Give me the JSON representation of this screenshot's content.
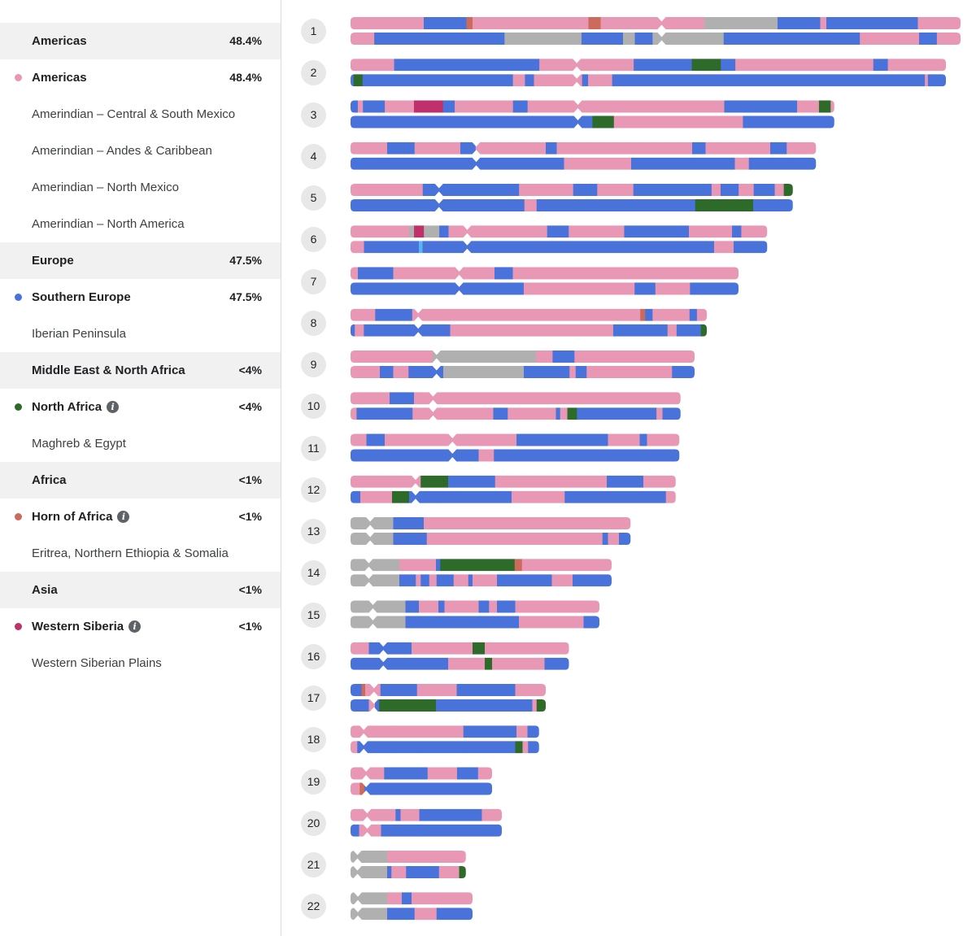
{
  "colors": {
    "americas": "#e898b4",
    "southern_europe": "#4a72db",
    "north_africa": "#2e6b2a",
    "horn_of_africa": "#cc6a5c",
    "western_siberia": "#c0306a",
    "unassigned": "#b0b0b0",
    "light_blue": "#5ab4f0"
  },
  "sidebar": {
    "rows": [
      {
        "label": "Americas",
        "pct": "48.4%"
      },
      {
        "label": "Americas",
        "pct": "48.4%",
        "icon": "pink-dot"
      },
      {
        "label": "Amerindian – Central & South Mexico"
      },
      {
        "label": "Amerindian – Andes & Caribbean"
      },
      {
        "label": "Amerindian – North Mexico"
      },
      {
        "label": "Amerindian – North America"
      },
      {
        "label": "Europe",
        "pct": "47.5%"
      },
      {
        "label": "Southern Europe",
        "pct": "47.5%",
        "icon": "blue-dot"
      },
      {
        "label": "Iberian Peninsula"
      },
      {
        "label": "Middle East & North Africa",
        "pct": "<4%"
      },
      {
        "label": "North Africa",
        "pct": "<4%",
        "icon": "green-dot",
        "info_icon": "i"
      },
      {
        "label": "Maghreb & Egypt"
      },
      {
        "label": "Africa",
        "pct": "<1%"
      },
      {
        "label": "Horn of Africa",
        "pct": "<1%",
        "icon": "orange-dot",
        "info_icon": "i"
      },
      {
        "label": "Eritrea, Northern Ethiopia & Somalia"
      },
      {
        "label": "Asia",
        "pct": "<1%"
      },
      {
        "label": "Western Siberia",
        "pct": "<1%",
        "icon": "magenta-dot",
        "info_icon": "i"
      },
      {
        "label": "Western Siberian Plains"
      }
    ]
  },
  "chromosomes": [
    {
      "num": "1",
      "length": 1,
      "centromere": 0.51,
      "top": [
        [
          "p",
          0.12
        ],
        [
          "b",
          0.07
        ],
        [
          "h",
          0.01
        ],
        [
          "p",
          0.19
        ],
        [
          "h",
          0.02
        ],
        [
          "p",
          0.17
        ],
        [
          "g",
          0.12
        ],
        [
          "b",
          0.07
        ],
        [
          "p",
          0.01
        ],
        [
          "b",
          0.15
        ],
        [
          "p",
          0.07
        ]
      ],
      "bottom": [
        [
          "p",
          0.04
        ],
        [
          "b",
          0.22
        ],
        [
          "g",
          0.13
        ],
        [
          "b",
          0.07
        ],
        [
          "g",
          0.02
        ],
        [
          "b",
          0.03
        ],
        [
          "g",
          0.12
        ],
        [
          "b",
          0.23
        ],
        [
          "p",
          0.1
        ],
        [
          "b",
          0.03
        ],
        [
          "p",
          0.04
        ]
      ]
    },
    {
      "num": "2",
      "length": 0.976,
      "centromere": 0.38,
      "top": [
        [
          "p",
          0.06
        ],
        [
          "b",
          0.2
        ],
        [
          "p",
          0.13
        ],
        [
          "b",
          0.08
        ],
        [
          "g2",
          0.04
        ],
        [
          "b",
          0.02
        ],
        [
          "p",
          0.19
        ],
        [
          "b",
          0.02
        ],
        [
          "p",
          0.08
        ]
      ],
      "bottom": [
        [
          "b",
          0.005
        ],
        [
          "g2",
          0.015
        ],
        [
          "b",
          0.25
        ],
        [
          "p",
          0.02
        ],
        [
          "b",
          0.015
        ],
        [
          "p",
          0.08
        ],
        [
          "b",
          0.01
        ],
        [
          "p",
          0.04
        ],
        [
          "b",
          0.52
        ],
        [
          "p",
          0.005
        ],
        [
          "b",
          0.03
        ]
      ]
    },
    {
      "num": "3",
      "length": 0.793,
      "centromere": 0.47,
      "top": [
        [
          "b",
          0.01
        ],
        [
          "p",
          0.007
        ],
        [
          "b",
          0.03
        ],
        [
          "p",
          0.04
        ],
        [
          "m",
          0.04
        ],
        [
          "b",
          0.016
        ],
        [
          "p",
          0.08
        ],
        [
          "b",
          0.02
        ],
        [
          "p",
          0.27
        ],
        [
          "b",
          0.1
        ],
        [
          "p",
          0.03
        ],
        [
          "g2",
          0.016
        ],
        [
          "p",
          0.005
        ]
      ],
      "bottom": [
        [
          "b",
          0.45
        ],
        [
          "g2",
          0.04
        ],
        [
          "p",
          0.24
        ],
        [
          "b",
          0.17
        ]
      ]
    },
    {
      "num": "4",
      "length": 0.763,
      "centromere": 0.27,
      "top": [
        [
          "p",
          0.06
        ],
        [
          "b",
          0.045
        ],
        [
          "p",
          0.075
        ],
        [
          "b",
          0.025
        ],
        [
          "p",
          0.115
        ],
        [
          "b",
          0.018
        ],
        [
          "p",
          0.222
        ],
        [
          "b",
          0.022
        ],
        [
          "p",
          0.106
        ],
        [
          "b",
          0.027
        ],
        [
          "p",
          0.048
        ]
      ],
      "bottom": [
        [
          "b",
          0.35
        ],
        [
          "p",
          0.11
        ],
        [
          "b",
          0.17
        ],
        [
          "p",
          0.023
        ],
        [
          "b",
          0.11
        ]
      ]
    },
    {
      "num": "5",
      "length": 0.725,
      "centromere": 0.2,
      "top": [
        [
          "p",
          0.12
        ],
        [
          "b",
          0.16
        ],
        [
          "p",
          0.09
        ],
        [
          "b",
          0.04
        ],
        [
          "p",
          0.06
        ],
        [
          "b",
          0.13
        ],
        [
          "p",
          0.015
        ],
        [
          "b",
          0.03
        ],
        [
          "p",
          0.025
        ],
        [
          "b",
          0.035
        ],
        [
          "p",
          0.015
        ],
        [
          "g2",
          0.015
        ]
      ],
      "bottom": [
        [
          "b",
          0.285
        ],
        [
          "p",
          0.02
        ],
        [
          "b",
          0.26
        ],
        [
          "g2",
          0.095
        ],
        [
          "b",
          0.065
        ]
      ]
    },
    {
      "num": "6",
      "length": 0.683,
      "centromere": 0.28,
      "top": [
        [
          "p",
          0.095
        ],
        [
          "g",
          0.008
        ],
        [
          "m",
          0.016
        ],
        [
          "g",
          0.025
        ],
        [
          "b",
          0.015
        ],
        [
          "p",
          0.16
        ],
        [
          "b",
          0.035
        ],
        [
          "p",
          0.09
        ],
        [
          "b",
          0.105
        ],
        [
          "p",
          0.07
        ],
        [
          "b",
          0.015
        ],
        [
          "p",
          0.042
        ]
      ],
      "bottom": [
        [
          "p",
          0.022
        ],
        [
          "b",
          0.09
        ],
        [
          "lb",
          0.006
        ],
        [
          "b",
          0.478
        ],
        [
          "p",
          0.032
        ],
        [
          "b",
          0.055
        ]
      ]
    },
    {
      "num": "7",
      "length": 0.636,
      "centromere": 0.28,
      "top": [
        [
          "p",
          0.012
        ],
        [
          "b",
          0.058
        ],
        [
          "p",
          0.166
        ],
        [
          "b",
          0.03
        ],
        [
          "p",
          0.37
        ]
      ],
      "bottom": [
        [
          "b",
          0.25
        ],
        [
          "p",
          0.16
        ],
        [
          "b",
          0.03
        ],
        [
          "p",
          0.05
        ],
        [
          "b",
          0.07
        ]
      ]
    },
    {
      "num": "8",
      "length": 0.584,
      "centromere": 0.19,
      "top": [
        [
          "p",
          0.04
        ],
        [
          "b",
          0.06
        ],
        [
          "p",
          0.08
        ],
        [
          "p",
          0.29
        ],
        [
          "h",
          0.008
        ],
        [
          "b",
          0.012
        ],
        [
          "p",
          0.06
        ],
        [
          "b",
          0.012
        ],
        [
          "p",
          0.016
        ]
      ],
      "bottom": [
        [
          "b",
          0.007
        ],
        [
          "p",
          0.015
        ],
        [
          "b",
          0.143
        ],
        [
          "p",
          0.27
        ],
        [
          "b",
          0.09
        ],
        [
          "p",
          0.015
        ],
        [
          "b",
          0.04
        ],
        [
          "g2",
          0.01
        ]
      ]
    },
    {
      "num": "9",
      "length": 0.564,
      "centromere": 0.25,
      "top": [
        [
          "p",
          0.15
        ],
        [
          "g",
          0.19
        ],
        [
          "p",
          0.03
        ],
        [
          "b",
          0.04
        ],
        [
          "p",
          0.22
        ]
      ],
      "bottom": [
        [
          "p",
          0.048
        ],
        [
          "b",
          0.022
        ],
        [
          "p",
          0.025
        ],
        [
          "b",
          0.057
        ],
        [
          "g",
          0.132
        ],
        [
          "b",
          0.075
        ],
        [
          "p",
          0.01
        ],
        [
          "b",
          0.018
        ],
        [
          "p",
          0.14
        ],
        [
          "b",
          0.037
        ]
      ]
    },
    {
      "num": "10",
      "length": 0.541,
      "centromere": 0.25,
      "top": [
        [
          "p",
          0.064
        ],
        [
          "b",
          0.04
        ],
        [
          "p",
          0.437
        ]
      ],
      "bottom": [
        [
          "p",
          0.01
        ],
        [
          "b",
          0.093
        ],
        [
          "p",
          0.134
        ],
        [
          "b",
          0.024
        ],
        [
          "p",
          0.08
        ],
        [
          "b",
          0.007
        ],
        [
          "p",
          0.012
        ],
        [
          "g2",
          0.016
        ],
        [
          "b",
          0.132
        ],
        [
          "p",
          0.01
        ],
        [
          "b",
          0.03
        ]
      ]
    },
    {
      "num": "11",
      "length": 0.539,
      "centromere": 0.31,
      "top": [
        [
          "p",
          0.026
        ],
        [
          "b",
          0.03
        ],
        [
          "p",
          0.216
        ],
        [
          "b",
          0.15
        ],
        [
          "p",
          0.052
        ],
        [
          "b",
          0.012
        ],
        [
          "p",
          0.053
        ]
      ],
      "bottom": [
        [
          "b",
          0.21
        ],
        [
          "p",
          0.025
        ],
        [
          "b",
          0.304
        ]
      ]
    },
    {
      "num": "12",
      "length": 0.533,
      "centromere": 0.2,
      "top": [
        [
          "p",
          0.115
        ],
        [
          "g2",
          0.045
        ],
        [
          "b",
          0.077
        ],
        [
          "p",
          0.183
        ],
        [
          "b",
          0.06
        ],
        [
          "p",
          0.053
        ]
      ],
      "bottom": [
        [
          "b",
          0.016
        ],
        [
          "p",
          0.052
        ],
        [
          "g2",
          0.028
        ],
        [
          "b",
          0.05
        ],
        [
          "b",
          0.118
        ],
        [
          "p",
          0.087
        ],
        [
          "b",
          0.166
        ],
        [
          "p",
          0.016
        ]
      ]
    },
    {
      "num": "13",
      "length": 0.459,
      "centromere": 0.07,
      "top": [
        [
          "g",
          0.07
        ],
        [
          "b",
          0.05
        ],
        [
          "p",
          0.339
        ]
      ],
      "bottom": [
        [
          "g",
          0.07
        ],
        [
          "b",
          0.055
        ],
        [
          "p",
          0.288
        ],
        [
          "b",
          0.009
        ],
        [
          "p",
          0.018
        ],
        [
          "b",
          0.019
        ]
      ]
    },
    {
      "num": "14",
      "length": 0.428,
      "centromere": 0.07,
      "top": [
        [
          "g",
          0.08
        ],
        [
          "p",
          0.06
        ],
        [
          "b",
          0.007
        ],
        [
          "g2",
          0.122
        ],
        [
          "h",
          0.012
        ],
        [
          "p",
          0.147
        ]
      ],
      "bottom": [
        [
          "g",
          0.08
        ],
        [
          "b",
          0.027
        ],
        [
          "p",
          0.008
        ],
        [
          "b",
          0.014
        ],
        [
          "p",
          0.012
        ],
        [
          "b",
          0.028
        ],
        [
          "p",
          0.024
        ],
        [
          "b",
          0.007
        ],
        [
          "p",
          0.04
        ],
        [
          "b",
          0.09
        ],
        [
          "p",
          0.034
        ],
        [
          "b",
          0.064
        ]
      ]
    },
    {
      "num": "15",
      "length": 0.408,
      "centromere": 0.09,
      "top": [
        [
          "g",
          0.09
        ],
        [
          "b",
          0.022
        ],
        [
          "p",
          0.032
        ],
        [
          "b",
          0.01
        ],
        [
          "p",
          0.056
        ],
        [
          "b",
          0.017
        ],
        [
          "p",
          0.013
        ],
        [
          "b",
          0.03
        ],
        [
          "p",
          0.138
        ]
      ],
      "bottom": [
        [
          "g",
          0.09
        ],
        [
          "b",
          0.186
        ],
        [
          "p",
          0.106
        ],
        [
          "b",
          0.026
        ]
      ]
    },
    {
      "num": "16",
      "length": 0.358,
      "centromere": 0.15,
      "top": [
        [
          "p",
          0.03
        ],
        [
          "b",
          0.07
        ],
        [
          "p",
          0.1
        ],
        [
          "g2",
          0.02
        ],
        [
          "p",
          0.138
        ]
      ],
      "bottom": [
        [
          "b",
          0.16
        ],
        [
          "p",
          0.06
        ],
        [
          "g2",
          0.012
        ],
        [
          "p",
          0.086
        ],
        [
          "b",
          0.04
        ]
      ]
    },
    {
      "num": "17",
      "length": 0.32,
      "centromere": 0.12,
      "top": [
        [
          "b",
          0.018
        ],
        [
          "h",
          0.006
        ],
        [
          "p",
          0.025
        ],
        [
          "b",
          0.06
        ],
        [
          "p",
          0.065
        ],
        [
          "b",
          0.096
        ],
        [
          "p",
          0.05
        ]
      ],
      "bottom": [
        [
          "b",
          0.03
        ],
        [
          "p",
          0.01
        ],
        [
          "b",
          0.007
        ],
        [
          "g2",
          0.093
        ],
        [
          "b",
          0.158
        ],
        [
          "p",
          0.007
        ],
        [
          "g2",
          0.015
        ]
      ]
    },
    {
      "num": "18",
      "length": 0.309,
      "centromere": 0.07,
      "top": [
        [
          "p",
          0.07
        ],
        [
          "p",
          0.115
        ],
        [
          "b",
          0.087
        ],
        [
          "p",
          0.018
        ],
        [
          "b",
          0.019
        ]
      ],
      "bottom": [
        [
          "p",
          0.011
        ],
        [
          "b",
          0.059
        ],
        [
          "b",
          0.2
        ],
        [
          "g2",
          0.012
        ],
        [
          "p",
          0.009
        ],
        [
          "b",
          0.018
        ]
      ]
    },
    {
      "num": "19",
      "length": 0.232,
      "centromere": 0.11,
      "top": [
        [
          "p",
          0.048
        ],
        [
          "b",
          0.062
        ],
        [
          "p",
          0.042
        ],
        [
          "b",
          0.03
        ],
        [
          "p",
          0.02
        ]
      ],
      "bottom": [
        [
          "p",
          0.015
        ],
        [
          "h",
          0.008
        ],
        [
          "b",
          0.087
        ],
        [
          "b",
          0.122
        ]
      ]
    },
    {
      "num": "20",
      "length": 0.248,
      "centromere": 0.11,
      "top": [
        [
          "p",
          0.072
        ],
        [
          "b",
          0.008
        ],
        [
          "p",
          0.03
        ],
        [
          "b",
          0.1
        ],
        [
          "p",
          0.032
        ]
      ],
      "bottom": [
        [
          "b",
          0.014
        ],
        [
          "p",
          0.036
        ],
        [
          "b",
          0.06
        ],
        [
          "b",
          0.138
        ]
      ]
    },
    {
      "num": "21",
      "length": 0.189,
      "centromere": 0.06,
      "top": [
        [
          "g",
          0.06
        ],
        [
          "p",
          0.129
        ]
      ],
      "bottom": [
        [
          "g",
          0.06
        ],
        [
          "b",
          0.007
        ],
        [
          "p",
          0.024
        ],
        [
          "b",
          0.054
        ],
        [
          "p",
          0.033
        ],
        [
          "g2",
          0.011
        ]
      ]
    },
    {
      "num": "22",
      "length": 0.2,
      "centromere": 0.06,
      "top": [
        [
          "g",
          0.06
        ],
        [
          "p",
          0.024
        ],
        [
          "b",
          0.016
        ],
        [
          "p",
          0.1
        ]
      ],
      "bottom": [
        [
          "g",
          0.06
        ],
        [
          "b",
          0.045
        ],
        [
          "p",
          0.036
        ],
        [
          "b",
          0.059
        ]
      ]
    }
  ]
}
